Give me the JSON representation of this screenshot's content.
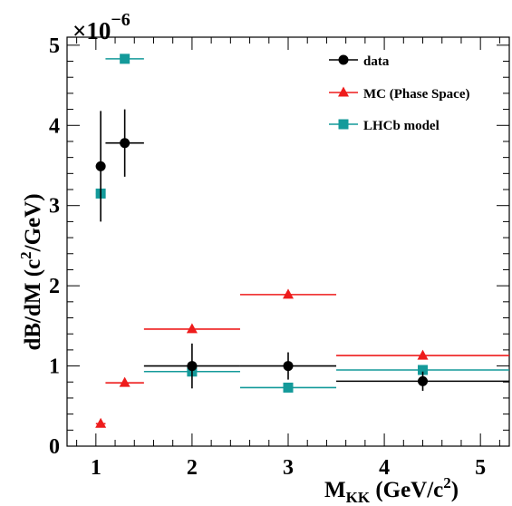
{
  "chart_data": {
    "type": "scatter",
    "x_axis": {
      "label_main": "M",
      "label_sub": "KK",
      "label_unit": " (GeV/c",
      "label_unit_sup": "2",
      "label_unit_close": ")",
      "range": [
        0.7,
        5.3
      ],
      "ticks": [
        "1",
        "2",
        "3",
        "4",
        "5"
      ]
    },
    "y_axis": {
      "label_main": "dB/dM (c",
      "label_sup": "2",
      "label_tail": "/GeV)",
      "range": [
        0,
        5.1
      ],
      "ticks": [
        "0",
        "1",
        "2",
        "3",
        "4",
        "5"
      ],
      "multiplier_base": "×10",
      "multiplier_exp": "−6"
    },
    "grid": false,
    "legend_position": "top-right",
    "series": [
      {
        "name": "data",
        "color": "#000000",
        "marker": "circle",
        "points": [
          {
            "x": 1.05,
            "xerr": [
              1.0,
              1.1
            ],
            "y": 3.49,
            "yerr": [
              2.8,
              4.18
            ]
          },
          {
            "x": 1.3,
            "xerr": [
              1.1,
              1.5
            ],
            "y": 3.78,
            "yerr": [
              3.36,
              4.2
            ]
          },
          {
            "x": 2.0,
            "xerr": [
              1.5,
              2.5
            ],
            "y": 1.0,
            "yerr": [
              0.72,
              1.28
            ]
          },
          {
            "x": 3.0,
            "xerr": [
              2.5,
              3.5
            ],
            "y": 1.0,
            "yerr": [
              0.83,
              1.17
            ]
          },
          {
            "x": 4.4,
            "xerr": [
              3.5,
              5.3
            ],
            "y": 0.81,
            "yerr": [
              0.69,
              0.93
            ]
          }
        ]
      },
      {
        "name": "MC (Phase Space)",
        "color": "#ee1c1c",
        "marker": "triangle",
        "points": [
          {
            "x": 1.05,
            "xerr": [
              1.0,
              1.1
            ],
            "y": 0.28
          },
          {
            "x": 1.3,
            "xerr": [
              1.1,
              1.5
            ],
            "y": 0.79
          },
          {
            "x": 2.0,
            "xerr": [
              1.5,
              2.5
            ],
            "y": 1.46
          },
          {
            "x": 3.0,
            "xerr": [
              2.5,
              3.5
            ],
            "y": 1.89
          },
          {
            "x": 4.4,
            "xerr": [
              3.5,
              5.3
            ],
            "y": 1.13
          }
        ]
      },
      {
        "name": "LHCb model",
        "color": "#149a9a",
        "marker": "square",
        "points": [
          {
            "x": 1.05,
            "xerr": [
              1.0,
              1.1
            ],
            "y": 3.15
          },
          {
            "x": 1.3,
            "xerr": [
              1.1,
              1.5
            ],
            "y": 4.83
          },
          {
            "x": 2.0,
            "xerr": [
              1.5,
              2.5
            ],
            "y": 0.93
          },
          {
            "x": 3.0,
            "xerr": [
              2.5,
              3.5
            ],
            "y": 0.73
          },
          {
            "x": 4.4,
            "xerr": [
              3.5,
              5.3
            ],
            "y": 0.95
          }
        ]
      }
    ]
  }
}
